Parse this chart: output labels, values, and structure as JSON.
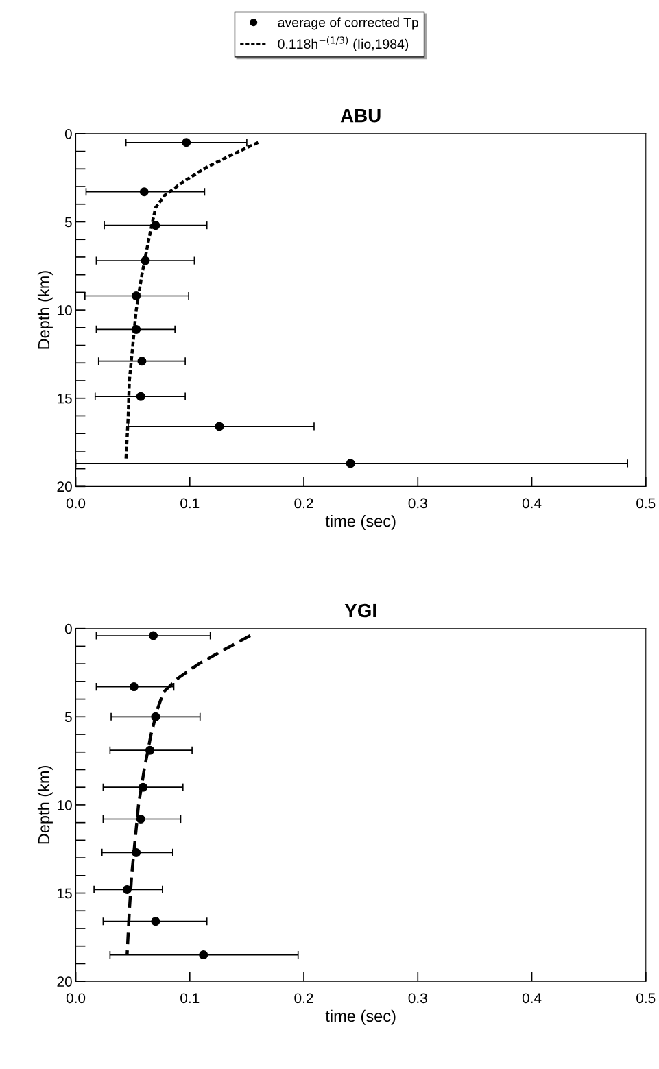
{
  "chart_data": [
    {
      "type": "scatter",
      "title": "ABU",
      "xlabel": "time (sec)",
      "ylabel": "Depth (km)",
      "legend": "top",
      "grid": false,
      "xlim": [
        0,
        0.5
      ],
      "xticks": [
        {
          "value": 0,
          "label": "0.0"
        },
        {
          "value": 0.1,
          "label": "0.1"
        },
        {
          "value": 0.2,
          "label": "0.2"
        },
        {
          "value": 0.3,
          "label": "0.3"
        },
        {
          "value": 0.4,
          "label": "0.4"
        },
        {
          "value": 0.5,
          "label": "0.5"
        }
      ],
      "ylim": [
        20,
        0
      ],
      "yticks": [
        0,
        {
          "value": 1,
          "label": null
        },
        {
          "value": 2,
          "label": null
        },
        {
          "value": 3,
          "label": null
        },
        {
          "value": 4,
          "label": null
        },
        5,
        {
          "value": 6,
          "label": null
        },
        {
          "value": 7,
          "label": null
        },
        {
          "value": 8,
          "label": null
        },
        {
          "value": 9,
          "label": null
        },
        10,
        {
          "value": 11,
          "label": null
        },
        {
          "value": 12,
          "label": null
        },
        {
          "value": 13,
          "label": null
        },
        {
          "value": 14,
          "label": null
        },
        15,
        {
          "value": 16,
          "label": null
        },
        {
          "value": 17,
          "label": null
        },
        {
          "value": 18,
          "label": null
        },
        {
          "value": 19,
          "label": null
        },
        20
      ],
      "series": [
        {
          "name": "average of corrected Tp",
          "marker": "circle",
          "color": "#000000",
          "x": [
            0.097,
            0.06,
            0.07,
            0.061,
            0.053,
            0.053,
            0.058,
            0.057,
            0.126,
            0.241
          ],
          "values": [
            0.5,
            3.3,
            5.2,
            7.2,
            9.2,
            11.1,
            12.9,
            14.9,
            16.6,
            18.7
          ],
          "xerrors": [
            [
              0.044,
              0.15
            ],
            [
              0.009,
              0.113
            ],
            [
              0.025,
              0.115
            ],
            [
              0.018,
              0.104
            ],
            [
              0.008,
              0.099
            ],
            [
              0.018,
              0.087
            ],
            [
              0.02,
              0.096
            ],
            [
              0.017,
              0.096
            ],
            [
              0.046,
              0.209
            ],
            [
              0.0,
              0.484
            ]
          ]
        },
        {
          "name": "0.118h$^{−(1/3)}$ (Iio,1984)",
          "type": "line",
          "line_style": "dotted",
          "color": "#000000",
          "x": [
            0.16,
            0.14,
            0.115,
            0.095,
            0.078,
            0.07,
            0.064,
            0.058,
            0.053,
            0.05,
            0.047,
            0.046,
            0.044
          ],
          "values": [
            0.5,
            1.1,
            1.9,
            2.7,
            3.5,
            4.2,
            6,
            8,
            10,
            12,
            14,
            16,
            18.5
          ]
        }
      ]
    },
    {
      "type": "scatter",
      "title": "YGI",
      "xlabel": "time (sec)",
      "ylabel": "Depth (km)",
      "grid": false,
      "xlim": [
        0,
        0.5
      ],
      "xticks": [
        {
          "value": 0,
          "label": "0.0"
        },
        {
          "value": 0.1,
          "label": "0.1"
        },
        {
          "value": 0.2,
          "label": "0.2"
        },
        {
          "value": 0.3,
          "label": "0.3"
        },
        {
          "value": 0.4,
          "label": "0.4"
        },
        {
          "value": 0.5,
          "label": "0.5"
        }
      ],
      "ylim": [
        20,
        0
      ],
      "yticks": [
        0,
        {
          "value": 1,
          "label": null
        },
        {
          "value": 2,
          "label": null
        },
        {
          "value": 3,
          "label": null
        },
        {
          "value": 4,
          "label": null
        },
        5,
        {
          "value": 6,
          "label": null
        },
        {
          "value": 7,
          "label": null
        },
        {
          "value": 8,
          "label": null
        },
        {
          "value": 9,
          "label": null
        },
        10,
        {
          "value": 11,
          "label": null
        },
        {
          "value": 12,
          "label": null
        },
        {
          "value": 13,
          "label": null
        },
        {
          "value": 14,
          "label": null
        },
        15,
        {
          "value": 16,
          "label": null
        },
        {
          "value": 17,
          "label": null
        },
        {
          "value": 18,
          "label": null
        },
        {
          "value": 19,
          "label": null
        },
        20
      ],
      "series": [
        {
          "name": "average of corrected Tp",
          "marker": "circle",
          "color": "#000000",
          "x": [
            0.068,
            0.051,
            0.07,
            0.065,
            0.059,
            0.057,
            0.053,
            0.045,
            0.07,
            0.112
          ],
          "values": [
            0.4,
            3.3,
            5.0,
            6.9,
            9.0,
            10.8,
            12.7,
            14.8,
            16.6,
            18.5
          ],
          "xerrors": [
            [
              0.018,
              0.118
            ],
            [
              0.018,
              0.086
            ],
            [
              0.031,
              0.109
            ],
            [
              0.03,
              0.102
            ],
            [
              0.024,
              0.094
            ],
            [
              0.024,
              0.092
            ],
            [
              0.023,
              0.085
            ],
            [
              0.016,
              0.076
            ],
            [
              0.024,
              0.115
            ],
            [
              0.03,
              0.195
            ]
          ]
        },
        {
          "name": "0.118h$^{−(1/3)}$ (Iio,1984)",
          "type": "line",
          "line_style": "dashed",
          "color": "#000000",
          "x": [
            0.153,
            0.13,
            0.108,
            0.09,
            0.077,
            0.072,
            0.066,
            0.06,
            0.055,
            0.052,
            0.049,
            0.047,
            0.045
          ],
          "values": [
            0.4,
            1.2,
            2.0,
            2.8,
            3.6,
            4.5,
            6,
            8,
            10,
            12,
            14,
            16,
            18.5
          ]
        }
      ]
    }
  ]
}
